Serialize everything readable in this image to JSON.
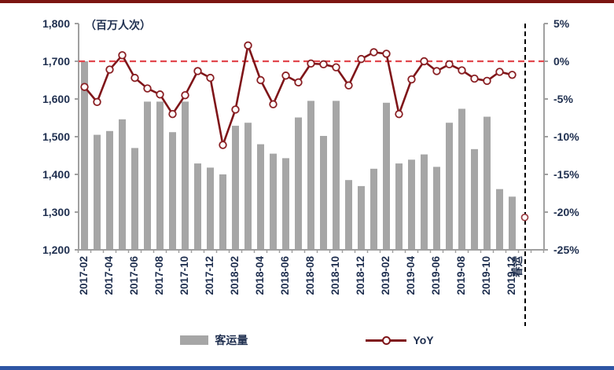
{
  "page": {
    "top_rule_color": "#7b1512",
    "bottom_rule_color": "#2e55a4",
    "background": "#ffffff"
  },
  "chart_data": {
    "type": "bar+line",
    "unit_label": "（百万人次）",
    "categories": [
      "2017-02",
      "2017-03",
      "2017-04",
      "2017-05",
      "2017-06",
      "2017-07",
      "2017-08",
      "2017-09",
      "2017-10",
      "2017-11",
      "2017-12",
      "2018-01",
      "2018-02",
      "2018-03",
      "2018-04",
      "2018-05",
      "2018-06",
      "2018-07",
      "2018-08",
      "2018-09",
      "2018-10",
      "2018-11",
      "2018-12",
      "2019-01",
      "2019-02",
      "2019-03",
      "2019-04",
      "2019-05",
      "2019-06",
      "2019-07",
      "2019-08",
      "2019-09",
      "2019-10",
      "2019-11",
      "2019-12",
      "春运"
    ],
    "x_tick_labels": [
      "2017-02",
      "2017-04",
      "2017-06",
      "2017-08",
      "2017-10",
      "2017-12",
      "2018-02",
      "2018-04",
      "2018-06",
      "2018-08",
      "2018-10",
      "2018-12",
      "2019-02",
      "2019-04",
      "2019-06",
      "2019-08",
      "2019-10",
      "2019-12",
      "春运"
    ],
    "series": [
      {
        "name": "客运量",
        "type": "bar",
        "color": "#a6a6a6",
        "axis": "left",
        "values": [
          1700,
          1505,
          1515,
          1546,
          1470,
          1593,
          1593,
          1512,
          1593,
          1429,
          1418,
          1400,
          1529,
          1537,
          1480,
          1455,
          1443,
          1551,
          1595,
          1502,
          1595,
          1385,
          1369,
          1415,
          1590,
          1429,
          1439,
          1453,
          1420,
          1537,
          1574,
          1467,
          1553,
          1361,
          1341,
          null
        ]
      },
      {
        "name": "YoY",
        "type": "line",
        "color": "#7f1519",
        "marker": "circle-open",
        "axis": "right",
        "values": [
          -3.4,
          -5.4,
          -1.1,
          0.8,
          -2.2,
          -3.6,
          -4.4,
          -7.0,
          -4.5,
          -1.3,
          -2.2,
          -11.1,
          -6.4,
          2.1,
          -2.5,
          -5.7,
          -1.9,
          -2.8,
          -0.3,
          -0.4,
          -0.8,
          -3.2,
          0.3,
          1.2,
          1.0,
          -7.0,
          -2.4,
          0.0,
          -1.3,
          -0.4,
          -1.2,
          -2.3,
          -2.6,
          -1.4,
          -1.8,
          null
        ],
        "detached_point": {
          "category": "春运",
          "value": -20.7
        }
      }
    ],
    "left_axis": {
      "min": 1200,
      "max": 1800,
      "step": 100,
      "labels": [
        "1,200",
        "1,300",
        "1,400",
        "1,500",
        "1,600",
        "1,700",
        "1,800"
      ]
    },
    "right_axis": {
      "min": -25,
      "max": 5,
      "step": 5,
      "labels": [
        "-25%",
        "-20%",
        "-15%",
        "-10%",
        "-5%",
        "0%",
        "5%"
      ]
    },
    "reference_line": {
      "value": 0,
      "axis": "right",
      "color": "#e2474e",
      "style": "dashed"
    },
    "divider": {
      "before_category": "春运",
      "color": "#000000",
      "style": "dashed"
    },
    "grid": "off",
    "legend_position": "bottom",
    "text_color": "#203050",
    "axis_color": "#a0a0a0"
  },
  "legend": {
    "items": [
      {
        "label": "客运量",
        "swatch": "gray-bar"
      },
      {
        "label": "YoY",
        "swatch": "dark-red-line-circle"
      }
    ]
  }
}
